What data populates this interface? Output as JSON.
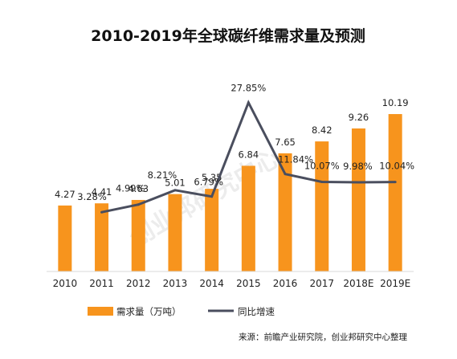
{
  "chart_data": {
    "type": "bar",
    "title": "2010-2019年全球碳纤维需求量及预测",
    "categories": [
      "2010",
      "2011",
      "2012",
      "2013",
      "2014",
      "2015",
      "2016",
      "2017",
      "2018E",
      "2019E"
    ],
    "series": [
      {
        "name": "需求量（万吨）",
        "type": "bar",
        "color": "#F7941D",
        "values": [
          4.27,
          4.41,
          4.63,
          5.01,
          5.35,
          6.84,
          7.65,
          8.42,
          9.26,
          10.19
        ],
        "labels": [
          "4.27",
          "4.41",
          "4.63",
          "5.01",
          "5.35",
          "6.84",
          "7.65",
          "8.42",
          "9.26",
          "10.19"
        ]
      },
      {
        "name": "同比增速",
        "type": "line",
        "color": "#4A4E5E",
        "unit": "%",
        "values": [
          null,
          3.28,
          4.99,
          8.21,
          6.79,
          27.85,
          11.84,
          10.07,
          9.98,
          10.04
        ],
        "labels": [
          "",
          "3.28%",
          "4.99%",
          "8.21%",
          "6.79%",
          "27.85%",
          "11.84%",
          "10.07%",
          "9.98%",
          "10.04%"
        ]
      }
    ],
    "bar_axis_range": [
      0,
      13
    ],
    "line_axis_range": [
      -10,
      35
    ],
    "axes_visible": false,
    "grid": false,
    "legend_position": "bottom"
  },
  "watermark": "创业邦研究中心",
  "source_note": "来源：前瞻产业研究院，创业邦研究中心整理"
}
